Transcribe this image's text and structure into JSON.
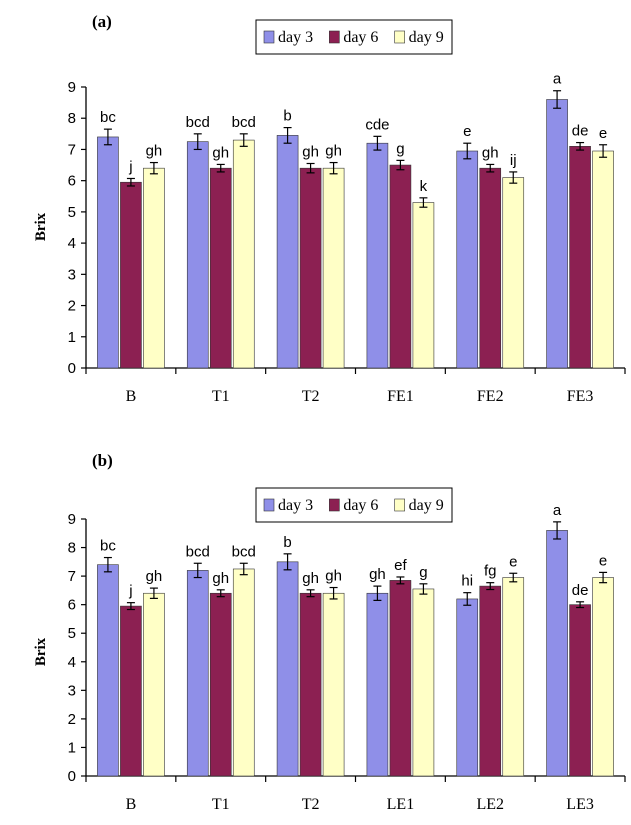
{
  "colors": {
    "day3": "#8f8fe8",
    "day6": "#8c2052",
    "day9": "#ffffc6",
    "axis": "#000000"
  },
  "chart_data": [
    {
      "type": "bar",
      "panel_label": "(a)",
      "ylabel": "Brix",
      "xlabel": "",
      "ylim": [
        0,
        9
      ],
      "yticks": [
        "0",
        "1",
        "2",
        "3",
        "4",
        "5",
        "6",
        "7",
        "8",
        "9"
      ],
      "legend_position": "top",
      "categories": [
        "B",
        "T1",
        "T2",
        "FE1",
        "FE2",
        "FE3"
      ],
      "series": [
        {
          "name": "day 3",
          "color_key": "day3",
          "values": [
            7.4,
            7.25,
            7.45,
            7.2,
            6.95,
            8.6
          ],
          "errors": [
            0.25,
            0.25,
            0.25,
            0.22,
            0.25,
            0.28
          ],
          "labels": [
            "bc",
            "bcd",
            "b",
            "cde",
            "e",
            "a"
          ]
        },
        {
          "name": "day 6",
          "color_key": "day6",
          "values": [
            5.95,
            6.4,
            6.4,
            6.5,
            6.4,
            7.1
          ],
          "errors": [
            0.12,
            0.12,
            0.15,
            0.15,
            0.12,
            0.12
          ],
          "labels": [
            "j",
            "gh",
            "gh",
            "g",
            "gh",
            "de"
          ]
        },
        {
          "name": "day 9",
          "color_key": "day9",
          "values": [
            6.4,
            7.3,
            6.4,
            5.3,
            6.1,
            6.95
          ],
          "errors": [
            0.18,
            0.2,
            0.18,
            0.15,
            0.18,
            0.2
          ],
          "labels": [
            "gh",
            "bcd",
            "gh",
            "k",
            "ij",
            "e"
          ]
        }
      ]
    },
    {
      "type": "bar",
      "panel_label": "(b)",
      "ylabel": "Brix",
      "xlabel": "",
      "ylim": [
        0,
        9
      ],
      "yticks": [
        "0",
        "1",
        "2",
        "3",
        "4",
        "5",
        "6",
        "7",
        "8",
        "9"
      ],
      "legend_position": "top",
      "categories": [
        "B",
        "T1",
        "T2",
        "LE1",
        "LE2",
        "LE3"
      ],
      "series": [
        {
          "name": "day 3",
          "color_key": "day3",
          "values": [
            7.4,
            7.2,
            7.5,
            6.4,
            6.2,
            8.6
          ],
          "errors": [
            0.25,
            0.25,
            0.28,
            0.25,
            0.22,
            0.3
          ],
          "labels": [
            "bc",
            "bcd",
            "b",
            "gh",
            "hi",
            "a"
          ]
        },
        {
          "name": "day 6",
          "color_key": "day6",
          "values": [
            5.95,
            6.4,
            6.4,
            6.85,
            6.65,
            6.0
          ],
          "errors": [
            0.12,
            0.12,
            0.12,
            0.12,
            0.12,
            0.1
          ],
          "labels": [
            "j",
            "gh",
            "gh",
            "ef",
            "fg",
            "de"
          ]
        },
        {
          "name": "day 9",
          "color_key": "day9",
          "values": [
            6.4,
            7.25,
            6.4,
            6.55,
            6.95,
            6.95
          ],
          "errors": [
            0.18,
            0.2,
            0.2,
            0.18,
            0.15,
            0.18
          ],
          "labels": [
            "gh",
            "bcd",
            "gh",
            "g",
            "e",
            "e"
          ]
        }
      ]
    }
  ]
}
